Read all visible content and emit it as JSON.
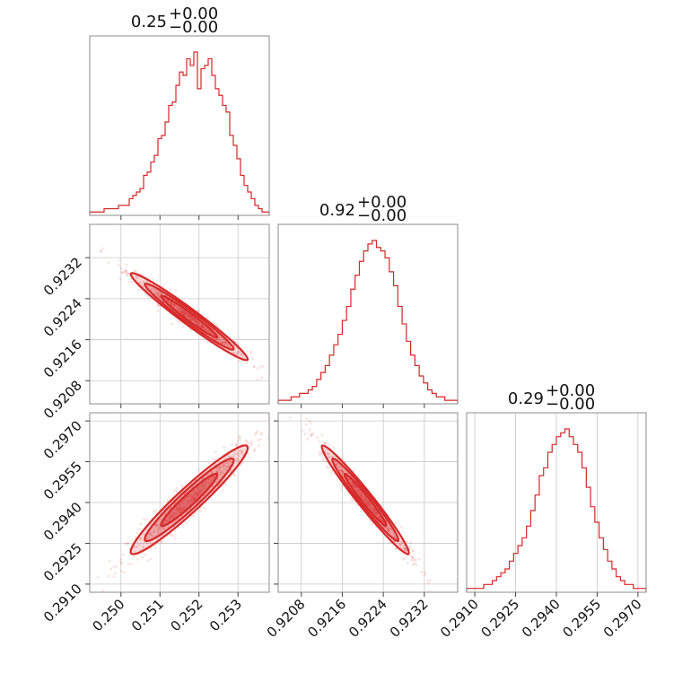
{
  "chart_data": {
    "type": "corner",
    "color": "#d62728",
    "parameters": [
      {
        "title": {
          "value": "0.25",
          "upper": "+0.00",
          "lower": "−0.00"
        },
        "range": [
          0.2492,
          0.2538
        ],
        "ticks": [
          "0.250",
          "0.251",
          "0.252",
          "0.253"
        ],
        "tick_values": [
          0.25,
          0.251,
          0.252,
          0.253
        ]
      },
      {
        "title": {
          "value": "0.92",
          "upper": "+0.00",
          "lower": "−0.00"
        },
        "range": [
          0.92035,
          0.92385
        ],
        "ticks": [
          "0.9208",
          "0.9216",
          "0.9224",
          "0.9232"
        ],
        "tick_values": [
          0.9208,
          0.9216,
          0.9224,
          0.9232
        ]
      },
      {
        "title": {
          "value": "0.29",
          "upper": "+0.00",
          "lower": "−0.00"
        },
        "range": [
          0.2907,
          0.2973
        ],
        "ticks": [
          "0.2910",
          "0.2925",
          "0.2940",
          "0.2955",
          "0.2970"
        ],
        "tick_values": [
          0.291,
          0.2925,
          0.294,
          0.2955,
          0.297
        ]
      }
    ],
    "histograms": [
      {
        "bin_edges": [
          0.2492,
          0.2538
        ],
        "counts": [
          1,
          1,
          1,
          1,
          2,
          2,
          2,
          2,
          3,
          3,
          3,
          5,
          6,
          7,
          8,
          12,
          13,
          16,
          18,
          23,
          24,
          28,
          33,
          34,
          39,
          43,
          42,
          47,
          45,
          49,
          38,
          44,
          45,
          47,
          42,
          38,
          36,
          33,
          31,
          24,
          21,
          17,
          12,
          9,
          7,
          5,
          3,
          2,
          1,
          1
        ]
      },
      {
        "bin_edges": [
          0.92035,
          0.92385
        ],
        "counts": [
          1,
          1,
          1,
          2,
          2,
          3,
          3,
          4,
          5,
          7,
          9,
          11,
          14,
          17,
          20,
          24,
          28,
          33,
          37,
          41,
          44,
          46,
          47,
          45,
          44,
          42,
          38,
          34,
          28,
          23,
          18,
          14,
          11,
          8,
          6,
          4,
          3,
          2,
          2,
          1,
          1,
          1
        ]
      },
      {
        "bin_edges": [
          0.2907,
          0.2973
        ],
        "counts": [
          1,
          1,
          1,
          1,
          2,
          2,
          3,
          4,
          5,
          6,
          8,
          10,
          12,
          14,
          17,
          21,
          25,
          30,
          32,
          36,
          38,
          40,
          41,
          42,
          40,
          38,
          36,
          32,
          27,
          22,
          18,
          14,
          11,
          8,
          6,
          4,
          3,
          2,
          2,
          1,
          1,
          1
        ]
      }
    ],
    "pairs": [
      {
        "x_param": 0,
        "y_param": 1,
        "center": [
          0.25175,
          0.92205
        ],
        "correlation": "negative"
      },
      {
        "x_param": 0,
        "y_param": 2,
        "center": [
          0.25175,
          0.2941
        ],
        "correlation": "positive"
      },
      {
        "x_param": 1,
        "y_param": 2,
        "center": [
          0.92205,
          0.2941
        ],
        "correlation": "negative"
      }
    ],
    "grid": true
  }
}
